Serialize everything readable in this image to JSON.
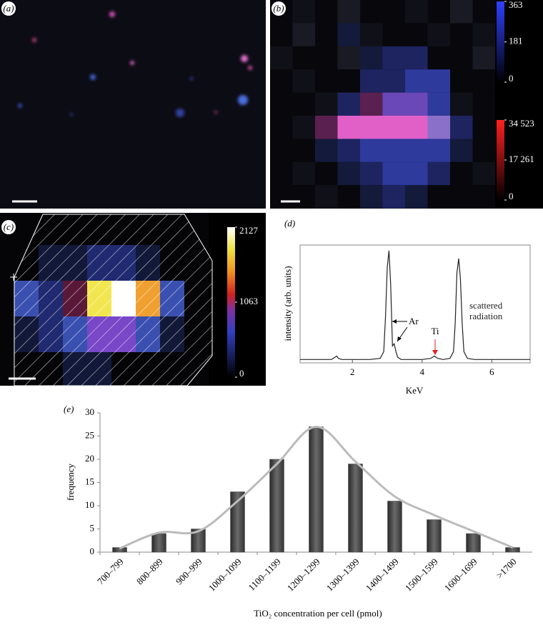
{
  "panel_labels": [
    "(a)",
    "(b)",
    "(c)",
    "(d)",
    "(e)"
  ],
  "colorbars": [
    {
      "range": [
        0,
        363
      ],
      "ticks": [
        0,
        181,
        363
      ]
    },
    {
      "range": [
        0,
        34523
      ],
      "ticks": [
        0,
        {
          "value": 17261,
          "label": "17 261"
        },
        {
          "value": 34523,
          "label": "34 523"
        }
      ]
    },
    {
      "range": [
        0,
        2127
      ],
      "ticks": [
        0,
        1063,
        2127
      ]
    }
  ],
  "chart_data": [
    {
      "type": "line",
      "xlabel": "KeV",
      "ylabel": "intensity (arb. units)",
      "color": "#222222",
      "xlim": [
        0.5,
        7.1
      ],
      "xticks": [
        2,
        4,
        6
      ],
      "ylim": [
        0,
        1.05
      ],
      "x": [
        0.5,
        1.0,
        1.4,
        1.5,
        1.55,
        1.6,
        1.7,
        2.0,
        2.5,
        2.8,
        2.9,
        2.95,
        3.0,
        3.05,
        3.1,
        3.15,
        3.2,
        3.25,
        3.3,
        3.4,
        3.6,
        4.0,
        4.25,
        4.35,
        4.45,
        4.6,
        4.8,
        4.9,
        4.95,
        5.0,
        5.05,
        5.1,
        5.15,
        5.2,
        5.3,
        5.5,
        6.0,
        6.5,
        7.1
      ],
      "values": [
        0.03,
        0.03,
        0.03,
        0.05,
        0.06,
        0.04,
        0.03,
        0.03,
        0.03,
        0.04,
        0.1,
        0.4,
        0.85,
        1.0,
        0.7,
        0.15,
        0.17,
        0.1,
        0.05,
        0.03,
        0.03,
        0.03,
        0.04,
        0.06,
        0.04,
        0.03,
        0.04,
        0.1,
        0.35,
        0.8,
        0.93,
        0.75,
        0.35,
        0.1,
        0.04,
        0.03,
        0.03,
        0.03,
        0.03
      ],
      "annotations": [
        "Ar",
        "Ti",
        "scattered radiation"
      ]
    },
    {
      "type": "bar",
      "xlabel": "TiO₂ concentration per cell (pmol)",
      "ylabel": "frequency",
      "categories": [
        "700–799",
        "800–899",
        "900–999",
        "1000–1099",
        "1100–1199",
        "1200–1299",
        "1300–1399",
        "1400–1499",
        "1500–1599",
        "1600–1699",
        ">1700"
      ],
      "series": [
        {
          "type": "bar",
          "color": "#4a4a4a",
          "values": [
            1,
            4,
            5,
            13,
            20,
            27,
            19,
            11,
            7,
            4,
            1
          ]
        },
        {
          "type": "line",
          "color": "#bbbbbb",
          "values": [
            0.8,
            4.2,
            4.5,
            11,
            19,
            27,
            19.5,
            12,
            8,
            4.5,
            1
          ]
        }
      ],
      "ylim": [
        0,
        30
      ],
      "yticks": [
        0,
        5,
        10,
        15,
        20,
        25,
        30
      ]
    }
  ]
}
